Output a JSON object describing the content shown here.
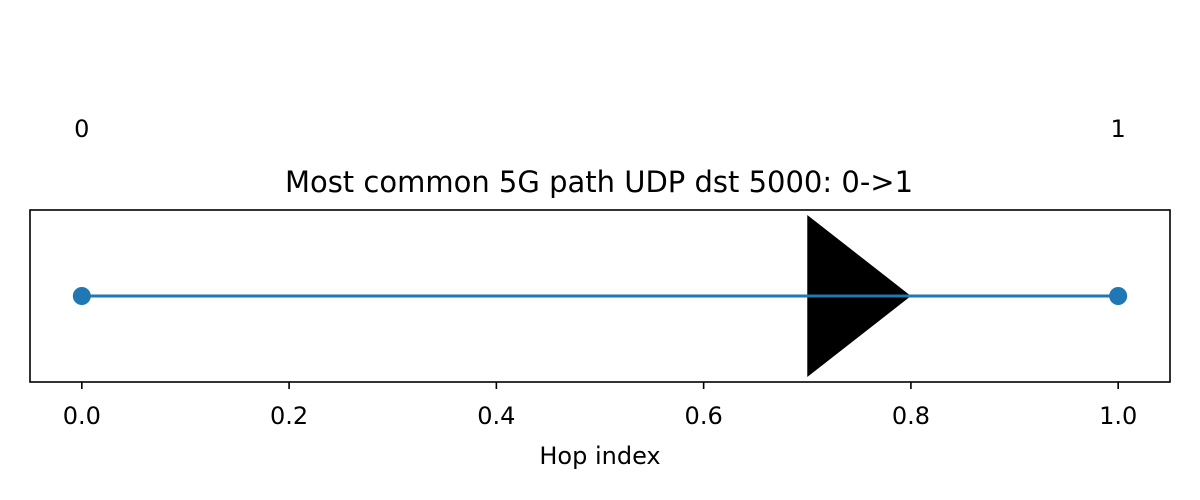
{
  "chart_data": {
    "type": "line",
    "title": "Most common 5G path UDP dst 5000: 0->1",
    "xlabel": "Hop index",
    "ylabel": "",
    "xlim": [
      -0.05,
      1.05
    ],
    "xticks": [
      "0.0",
      "0.2",
      "0.4",
      "0.6",
      "0.8",
      "1.0"
    ],
    "xtick_values": [
      0.0,
      0.2,
      0.4,
      0.6,
      0.8,
      1.0
    ],
    "grid": false,
    "series": [
      {
        "x": [
          0,
          1
        ],
        "y": [
          0,
          0
        ]
      }
    ],
    "node_labels": [
      {
        "x": 0,
        "text": "0"
      },
      {
        "x": 1,
        "text": "1"
      }
    ],
    "arrow": {
      "x_start": 0.7,
      "x_tip": 0.8,
      "color": "#000000"
    },
    "colors": {
      "series": "#1f77b4",
      "arrow": "#000000"
    }
  }
}
